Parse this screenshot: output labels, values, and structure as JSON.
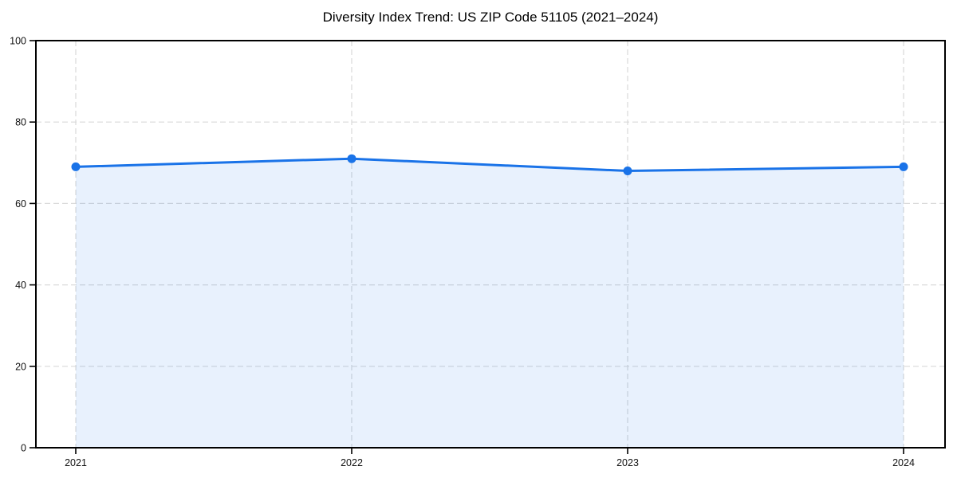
{
  "chart_data": {
    "type": "area",
    "title": "Diversity Index Trend: US ZIP Code 51105 (2021–2024)",
    "categories": [
      "2021",
      "2022",
      "2023",
      "2024"
    ],
    "series": [
      {
        "name": "Diversity Index",
        "values": [
          69,
          71,
          68,
          69
        ]
      }
    ],
    "xlabel": "",
    "ylabel": "",
    "ylim": [
      0,
      100
    ],
    "yticks": [
      0,
      20,
      40,
      60,
      80,
      100
    ],
    "grid": true,
    "grid_style": "dashed",
    "legend_position": "none",
    "line_color": "#1a73e8",
    "fill_color": "rgba(26,115,232,0.10)",
    "marker": "circle",
    "frame_color": "#000000"
  }
}
